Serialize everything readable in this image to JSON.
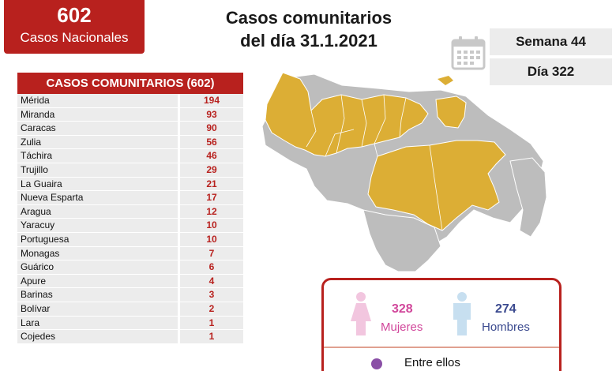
{
  "summary": {
    "total": "602",
    "total_label": "Casos Nacionales"
  },
  "title": {
    "line1": "Casos comunitarios",
    "line2": "del día 31.1.2021"
  },
  "badges": {
    "week": "Semana 44",
    "day": "Día 322"
  },
  "table": {
    "header": "CASOS COMUNITARIOS (602)",
    "rows": [
      {
        "name": "Mérida",
        "value": "194"
      },
      {
        "name": "Miranda",
        "value": "93"
      },
      {
        "name": "Caracas",
        "value": "90"
      },
      {
        "name": "Zulia",
        "value": "56"
      },
      {
        "name": "Táchira",
        "value": "46"
      },
      {
        "name": "Trujillo",
        "value": "29"
      },
      {
        "name": "La Guaira",
        "value": "21"
      },
      {
        "name": "Nueva Esparta",
        "value": "17"
      },
      {
        "name": "Aragua",
        "value": "12"
      },
      {
        "name": "Yaracuy",
        "value": "10"
      },
      {
        "name": "Portuguesa",
        "value": "10"
      },
      {
        "name": "Monagas",
        "value": "7"
      },
      {
        "name": "Guárico",
        "value": "6"
      },
      {
        "name": "Apure",
        "value": "4"
      },
      {
        "name": "Barinas",
        "value": "3"
      },
      {
        "name": "Bolívar",
        "value": "2"
      },
      {
        "name": "Lara",
        "value": "1"
      },
      {
        "name": "Cojedes",
        "value": "1"
      }
    ]
  },
  "gender": {
    "women_count": "328",
    "women_label": "Mujeres",
    "men_count": "274",
    "men_label": "Hombres",
    "extra": "Entre ellos"
  },
  "colors": {
    "brand_red": "#b8211e",
    "map_highlight": "#dcae35",
    "map_base": "#bdbdbd",
    "women": "#d1479b",
    "men": "#3b4a8f"
  },
  "icons": [
    "calendar-icon",
    "female-icon",
    "male-icon",
    "person-icon"
  ]
}
